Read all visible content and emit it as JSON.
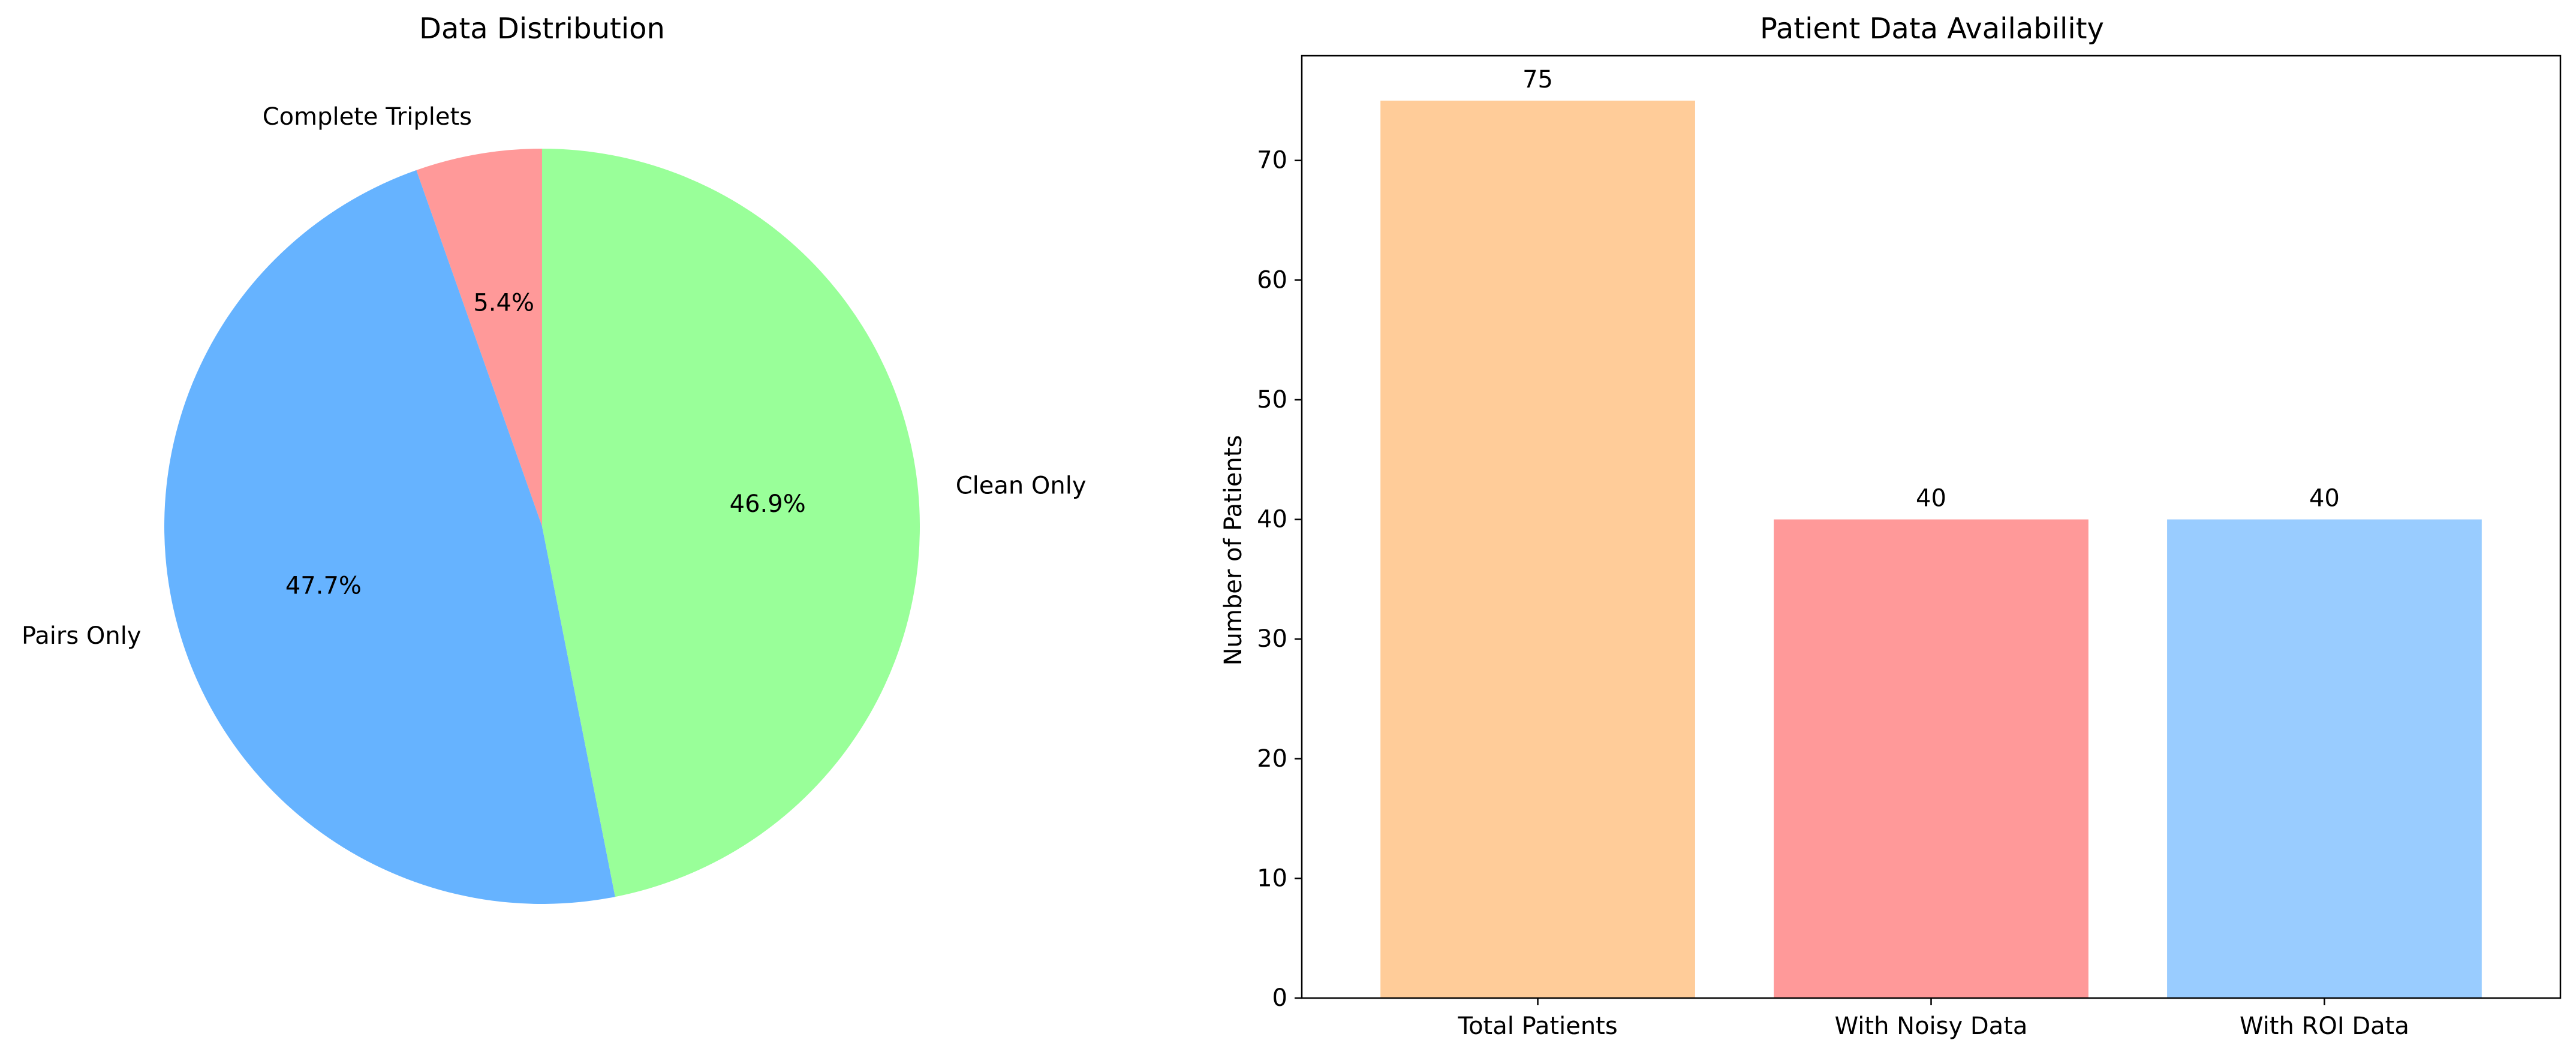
{
  "chart_data": [
    {
      "type": "pie",
      "title": "Data Distribution",
      "slices": [
        {
          "label": "Complete Triplets",
          "value": 5.4,
          "pct_label": "5.4%",
          "color": "#ff9999"
        },
        {
          "label": "Pairs Only",
          "value": 47.7,
          "pct_label": "47.7%",
          "color": "#66b3ff"
        },
        {
          "label": "Clean Only",
          "value": 46.9,
          "pct_label": "46.9%",
          "color": "#99ff99"
        }
      ],
      "start_angle_deg": 90,
      "direction": "counterclockwise"
    },
    {
      "type": "bar",
      "title": "Patient Data Availability",
      "categories": [
        "Total Patients",
        "With Noisy Data",
        "With ROI Data"
      ],
      "values": [
        75,
        40,
        40
      ],
      "value_labels": [
        "75",
        "40",
        "40"
      ],
      "colors": [
        "#ffcc99",
        "#ff9999",
        "#99ccff"
      ],
      "xlabel": "",
      "ylabel": "Number of Patients",
      "ylim": [
        0,
        78.75
      ],
      "yticks": [
        0,
        10,
        20,
        30,
        40,
        50,
        60,
        70
      ],
      "grid": false
    }
  ]
}
